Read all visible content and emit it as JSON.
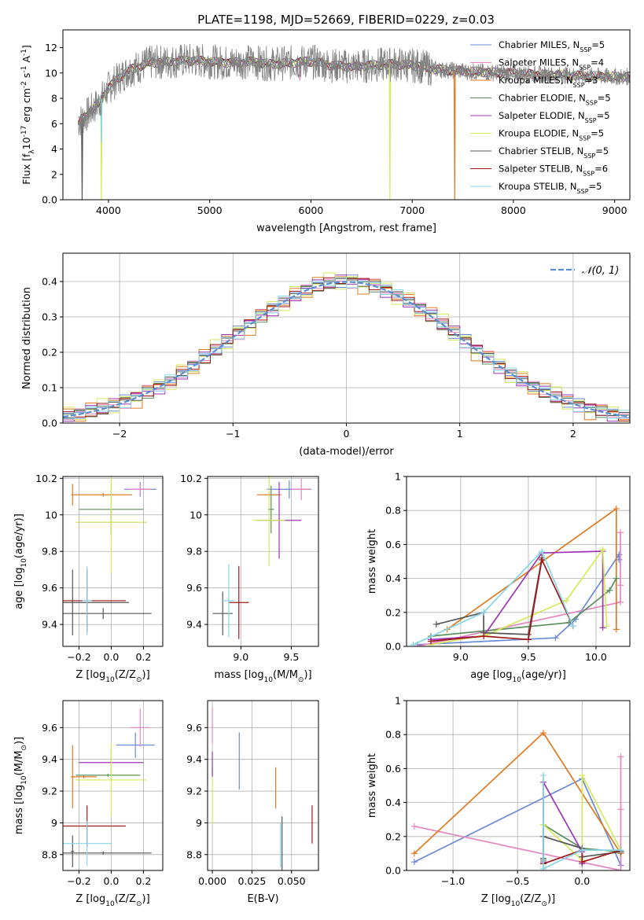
{
  "figure": {
    "title": "PLATE=1198, MJD=52669, FIBERID=0229, z=0.03"
  },
  "colors": {
    "blue": "#6a8ad6",
    "pink": "#e486c0",
    "orange": "#e07b22",
    "green": "#5c8f60",
    "purple": "#9b35b5",
    "yellow": "#d6e85c",
    "gray": "#555555",
    "red": "#a01818",
    "cyan": "#86d6e6",
    "normal": "#5b8dd6",
    "grid": "#b0b0b0",
    "spectrum": "#808080"
  },
  "models": [
    {
      "name": "Chabrier MILES",
      "nssp": "5",
      "color": "#6a8ad6"
    },
    {
      "name": "Salpeter MILES",
      "nssp": "4",
      "color": "#e486c0"
    },
    {
      "name": "Kroupa MILES",
      "nssp": "3",
      "color": "#e07b22"
    },
    {
      "name": "Chabrier ELODIE",
      "nssp": "5",
      "color": "#5c8f60"
    },
    {
      "name": "Salpeter ELODIE",
      "nssp": "5",
      "color": "#9b35b5"
    },
    {
      "name": "Kroupa ELODIE",
      "nssp": "5",
      "color": "#d6e85c"
    },
    {
      "name": "Chabrier STELIB",
      "nssp": "5",
      "color": "#555555"
    },
    {
      "name": "Salpeter STELIB",
      "nssp": "6",
      "color": "#a01818"
    },
    {
      "name": "Kroupa STELIB",
      "nssp": "5",
      "color": "#86d6e6"
    }
  ],
  "chart_data": [
    {
      "id": "spectrum",
      "type": "line",
      "title": "PLATE=1198, MJD=52669, FIBERID=0229, z=0.03",
      "xlabel": "wavelength [Angstrom, rest frame]",
      "ylabel_parts": [
        "Flux [f",
        "λ",
        "10",
        "-17",
        " erg cm",
        "-2",
        " s",
        "-1",
        " A",
        "-1",
        "]"
      ],
      "xlim": [
        3550,
        9150
      ],
      "ylim": [
        0,
        13.4
      ],
      "xticks": [
        4000,
        5000,
        6000,
        7000,
        8000,
        9000
      ],
      "yticks": [
        0,
        2,
        4,
        6,
        8,
        10,
        12
      ],
      "continuum": {
        "x": [
          3700,
          3800,
          3900,
          4000,
          4100,
          4200,
          4400,
          4600,
          4800,
          5000,
          5200,
          5400,
          5600,
          5800,
          6000,
          6200,
          6400,
          6600,
          6800,
          7000,
          7100,
          7200,
          7400,
          7600,
          7900,
          8200,
          8600,
          9000,
          9150
        ],
        "y": [
          6.1,
          6.8,
          7.6,
          8.8,
          9.6,
          10.2,
          10.8,
          10.9,
          11.0,
          10.9,
          10.8,
          10.9,
          10.7,
          10.8,
          10.9,
          10.6,
          10.5,
          10.6,
          10.7,
          10.6,
          10.5,
          10.3,
          10.2,
          10.1,
          10.0,
          9.9,
          9.8,
          9.7,
          9.7
        ]
      },
      "observed_range": [
        3700,
        9150
      ],
      "dips": [
        {
          "x": 3740,
          "y": 0.0,
          "model": 6
        },
        {
          "x": 3930,
          "y": 0.0,
          "model": 5
        },
        {
          "x": 6780,
          "y": 0.0,
          "model": 5
        },
        {
          "x": 7420,
          "y": 0.0,
          "model": 2
        },
        {
          "x": 5890,
          "y": 9.4,
          "model": 1
        },
        {
          "x": 3930,
          "y": 4.5,
          "model": 8
        }
      ]
    },
    {
      "id": "residuals",
      "type": "step",
      "xlabel": "(data-model)/error",
      "ylabel": "Normed distribution",
      "xlim": [
        -2.5,
        2.5
      ],
      "ylim": [
        0,
        0.48
      ],
      "xticks": [
        -2,
        -1,
        0,
        1,
        2
      ],
      "xtick_labels": [
        "−2",
        "−1",
        "0",
        "1",
        "2"
      ],
      "yticks": [
        0.0,
        0.1,
        0.2,
        0.3,
        0.4
      ],
      "legend": "𝒩(0, 1)",
      "bins": {
        "start": -2.5,
        "width": 0.1,
        "count": 50
      },
      "series": [
        {
          "model": 0,
          "noise": [
            0.008,
            -0.012,
            0.01,
            0.004,
            -0.015,
            0.02,
            0.006,
            -0.01,
            0.014,
            -0.005
          ]
        },
        {
          "model": 1,
          "noise": [
            -0.01,
            0.015,
            -0.006,
            0.012,
            0.003,
            -0.018,
            0.01,
            0.02,
            -0.008,
            0.005
          ]
        },
        {
          "model": 2,
          "noise": [
            0.02,
            -0.02,
            0.025,
            -0.012,
            0.015,
            0.01,
            -0.03,
            0.018,
            0.006,
            -0.01
          ]
        },
        {
          "model": 3,
          "noise": [
            0.005,
            0.01,
            -0.014,
            0.008,
            -0.006,
            0.012,
            0.004,
            -0.016,
            0.01,
            0.002
          ]
        },
        {
          "model": 4,
          "noise": [
            -0.015,
            0.006,
            0.018,
            -0.01,
            0.02,
            -0.006,
            0.012,
            0.004,
            -0.02,
            0.01
          ]
        },
        {
          "model": 5,
          "noise": [
            0.025,
            -0.015,
            0.006,
            0.03,
            -0.02,
            0.015,
            -0.01,
            0.008,
            0.02,
            -0.025
          ]
        },
        {
          "model": 6,
          "noise": [
            -0.005,
            0.012,
            0.008,
            -0.014,
            0.01,
            0.006,
            -0.008,
            0.014,
            -0.004,
            0.01
          ]
        },
        {
          "model": 7,
          "noise": [
            0.012,
            -0.008,
            -0.012,
            0.016,
            -0.004,
            0.01,
            0.014,
            -0.01,
            0.008,
            -0.014
          ]
        },
        {
          "model": 8,
          "noise": [
            -0.008,
            0.004,
            0.014,
            -0.006,
            0.012,
            -0.016,
            0.006,
            0.01,
            -0.012,
            0.016
          ]
        }
      ]
    },
    {
      "id": "age_vs_z",
      "type": "errorbar",
      "xlabel": [
        "Z [log",
        "10",
        "(Z/Z",
        "⊙",
        ")]"
      ],
      "ylabel": [
        "age  [log",
        "10",
        "(age/yr)]"
      ],
      "xlim": [
        -0.3,
        0.32
      ],
      "ylim": [
        9.28,
        10.21
      ],
      "xticks": [
        -0.2,
        0.0,
        0.2
      ],
      "xtick_labels": [
        "−0.2",
        "0.0",
        "0.2"
      ],
      "yticks": [
        9.4,
        9.6,
        9.8,
        10.0,
        10.2
      ],
      "points": [
        {
          "model": 0,
          "x": 0.18,
          "y": 10.14,
          "xerr": 0.1,
          "yerr": 0.04
        },
        {
          "model": 1,
          "x": 0.18,
          "y": 10.14,
          "xerr": 0.07,
          "yerr": 0.03
        },
        {
          "model": 2,
          "x": -0.24,
          "y": 10.11,
          "xerr": 0.01,
          "yerr": 0.06
        },
        {
          "model": 2,
          "x": -0.05,
          "y": 10.11,
          "xerr": 0.18,
          "yerr": 0.01
        },
        {
          "model": 3,
          "x": 0.0,
          "y": 10.03,
          "xerr": 0.2,
          "yerr": 0.14
        },
        {
          "model": 4,
          "x": 0.0,
          "y": 9.96,
          "xerr": 0.22,
          "yerr": 0.07
        },
        {
          "model": 5,
          "x": 0.0,
          "y": 9.96,
          "xerr": 0.22,
          "yerr": 0.28
        },
        {
          "model": 6,
          "x": -0.24,
          "y": 9.52,
          "xerr": 0.35,
          "yerr": 0.18
        },
        {
          "model": 6,
          "x": -0.05,
          "y": 9.46,
          "xerr": 0.3,
          "yerr": 0.03
        },
        {
          "model": 7,
          "x": -0.15,
          "y": 9.53,
          "xerr": 0.24,
          "yerr": 0.17
        },
        {
          "model": 8,
          "x": -0.15,
          "y": 9.53,
          "xerr": 0.03,
          "yerr": 0.19
        }
      ]
    },
    {
      "id": "age_vs_mass",
      "type": "errorbar",
      "xlabel": [
        "mass [log",
        "10",
        "(M/M",
        "⊙",
        ")]"
      ],
      "ylabel": [],
      "xlim": [
        8.67,
        9.77
      ],
      "ylim": [
        9.28,
        10.21
      ],
      "xticks": [
        9.0,
        9.5
      ],
      "xtick_labels": [
        "9.0",
        "9.5"
      ],
      "yticks": [
        9.4,
        9.6,
        9.8,
        10.0,
        10.2
      ],
      "points": [
        {
          "model": 0,
          "x": 9.48,
          "y": 10.14,
          "xerr": 0.22,
          "yerr": 0.05
        },
        {
          "model": 1,
          "x": 9.6,
          "y": 10.14,
          "xerr": 0.1,
          "yerr": 0.06
        },
        {
          "model": 2,
          "x": 9.28,
          "y": 10.11,
          "xerr": 0.12,
          "yerr": 0.02
        },
        {
          "model": 3,
          "x": 9.3,
          "y": 10.03,
          "xerr": 0.03,
          "yerr": 0.13
        },
        {
          "model": 4,
          "x": 9.38,
          "y": 9.97,
          "xerr": 0.22,
          "yerr": 0.21
        },
        {
          "model": 5,
          "x": 9.28,
          "y": 9.97,
          "xerr": 0.16,
          "yerr": 0.25
        },
        {
          "model": 6,
          "x": 8.82,
          "y": 9.46,
          "xerr": 0.1,
          "yerr": 0.12
        },
        {
          "model": 7,
          "x": 8.98,
          "y": 9.52,
          "xerr": 0.1,
          "yerr": 0.2
        },
        {
          "model": 8,
          "x": 8.88,
          "y": 9.53,
          "xerr": 0.06,
          "yerr": 0.2
        }
      ]
    },
    {
      "id": "weight_vs_age",
      "type": "line",
      "xlabel": [
        "age  [log",
        "10",
        "(age/yr)]"
      ],
      "ylabel": [
        "mass weight"
      ],
      "xlim": [
        8.6,
        10.25
      ],
      "ylim": [
        0,
        1.0
      ],
      "xticks": [
        9.0,
        9.5,
        10.0
      ],
      "xtick_labels": [
        "9.0",
        "9.5",
        "10.0"
      ],
      "yticks": [
        0.0,
        0.2,
        0.4,
        0.6,
        0.8,
        1.0
      ],
      "series": [
        {
          "model": 0,
          "x": [
            8.68,
            9.7,
            9.85,
            10.17,
            10.17
          ],
          "y": [
            0.01,
            0.05,
            0.16,
            0.54,
            0.51
          ]
        },
        {
          "model": 1,
          "x": [
            8.68,
            10.18,
            10.18,
            10.18
          ],
          "y": [
            0.0,
            0.26,
            0.36,
            0.67
          ]
        },
        {
          "model": 2,
          "x": [
            8.9,
            10.15,
            10.15
          ],
          "y": [
            0.1,
            0.81,
            0.1
          ]
        },
        {
          "model": 3,
          "x": [
            8.78,
            9.8,
            10.1,
            10.15
          ],
          "y": [
            0.06,
            0.14,
            0.33,
            0.4
          ]
        },
        {
          "model": 4,
          "x": [
            8.78,
            9.17,
            9.6,
            10.05,
            10.05
          ],
          "y": [
            0.04,
            0.06,
            0.55,
            0.56,
            0.11
          ]
        },
        {
          "model": 5,
          "x": [
            8.78,
            9.2,
            9.78,
            10.05,
            10.08
          ],
          "y": [
            0.01,
            0.07,
            0.27,
            0.57,
            0.12
          ]
        },
        {
          "model": 6,
          "x": [
            8.82,
            9.17,
            9.17,
            9.5,
            9.6
          ],
          "y": [
            0.13,
            0.2,
            0.08,
            0.07,
            0.52
          ]
        },
        {
          "model": 7,
          "x": [
            8.78,
            9.17,
            9.5,
            9.6,
            9.83
          ],
          "y": [
            0.03,
            0.06,
            0.04,
            0.51,
            0.12
          ]
        },
        {
          "model": 8,
          "x": [
            8.65,
            9.17,
            9.6,
            9.83
          ],
          "y": [
            0.01,
            0.2,
            0.56,
            0.12
          ]
        }
      ]
    },
    {
      "id": "mass_vs_z",
      "type": "errorbar",
      "xlabel": [
        "Z [log",
        "10",
        "(Z/Z",
        "⊙",
        ")]"
      ],
      "ylabel": [
        "mass [log",
        "10",
        "(M/M",
        "⊙",
        ")]"
      ],
      "xlim": [
        -0.3,
        0.32
      ],
      "ylim": [
        8.7,
        9.77
      ],
      "xticks": [
        -0.2,
        0.0,
        0.2
      ],
      "xtick_labels": [
        "−0.2",
        "0.0",
        "0.2"
      ],
      "yticks": [
        8.8,
        9.0,
        9.2,
        9.4,
        9.6
      ],
      "points": [
        {
          "model": 0,
          "x": 0.15,
          "y": 9.49,
          "xerr": 0.12,
          "yerr": 0.08
        },
        {
          "model": 1,
          "x": 0.18,
          "y": 9.6,
          "xerr": 0.06,
          "yerr": 0.12
        },
        {
          "model": 2,
          "x": -0.24,
          "y": 9.29,
          "xerr": 0.01,
          "yerr": 0.2
        },
        {
          "model": 2,
          "x": -0.17,
          "y": 9.29,
          "xerr": 0.08,
          "yerr": 0.01
        },
        {
          "model": 3,
          "x": -0.02,
          "y": 9.3,
          "xerr": 0.2,
          "yerr": 0.01
        },
        {
          "model": 4,
          "x": 0.0,
          "y": 9.38,
          "xerr": 0.2,
          "yerr": 0.08
        },
        {
          "model": 5,
          "x": 0.0,
          "y": 9.27,
          "xerr": 0.22,
          "yerr": 0.23
        },
        {
          "model": 6,
          "x": -0.24,
          "y": 8.82,
          "xerr": 0.01,
          "yerr": 0.1
        },
        {
          "model": 6,
          "x": -0.05,
          "y": 8.81,
          "xerr": 0.3,
          "yerr": 0.01
        },
        {
          "model": 7,
          "x": -0.15,
          "y": 8.98,
          "xerr": 0.24,
          "yerr": 0.13
        },
        {
          "model": 8,
          "x": -0.15,
          "y": 8.87,
          "xerr": 0.15,
          "yerr": 0.14
        }
      ]
    },
    {
      "id": "mass_vs_ebv",
      "type": "errorbar",
      "xlabel": [
        "E(B-V)"
      ],
      "ylabel": [],
      "xlim": [
        -0.003,
        0.067
      ],
      "ylim": [
        8.7,
        9.77
      ],
      "xticks": [
        0.0,
        0.025,
        0.05
      ],
      "xtick_labels": [
        "0.000",
        "0.025",
        "0.050"
      ],
      "yticks": [
        8.8,
        9.0,
        9.2,
        9.4,
        9.6
      ],
      "points": [
        {
          "model": 0,
          "x": 0.017,
          "y": 9.39,
          "xerr": 0.0,
          "yerr": 0.18
        },
        {
          "model": 1,
          "x": 0.0,
          "y": 9.61,
          "xerr": 0.0,
          "yerr": 0.11
        },
        {
          "model": 2,
          "x": 0.04,
          "y": 9.22,
          "xerr": 0.0,
          "yerr": 0.13
        },
        {
          "model": 3,
          "x": 0.0,
          "y": 9.32,
          "xerr": 0.0,
          "yerr": 0.02
        },
        {
          "model": 4,
          "x": 0.0,
          "y": 9.37,
          "xerr": 0.0,
          "yerr": 0.08
        },
        {
          "model": 5,
          "x": 0.0,
          "y": 9.14,
          "xerr": 0.0,
          "yerr": 0.15
        },
        {
          "model": 6,
          "x": 0.044,
          "y": 8.86,
          "xerr": 0.0,
          "yerr": 0.18
        },
        {
          "model": 7,
          "x": 0.063,
          "y": 8.99,
          "xerr": 0.0,
          "yerr": 0.12
        },
        {
          "model": 8,
          "x": 0.043,
          "y": 8.86,
          "xerr": 0.0,
          "yerr": 0.14
        }
      ]
    },
    {
      "id": "weight_vs_z",
      "type": "line",
      "xlabel": [
        "Z [log",
        "10",
        "(Z/Z",
        "⊙",
        ")]"
      ],
      "ylabel": [
        "mass weight"
      ],
      "xlim": [
        -1.36,
        0.37
      ],
      "ylim": [
        0,
        1.0
      ],
      "xticks": [
        -1.0,
        -0.5,
        0.0
      ],
      "xtick_labels": [
        "−1.0",
        "−0.5",
        "0.0"
      ],
      "yticks": [
        0.0,
        0.2,
        0.4,
        0.6,
        0.8,
        1.0
      ],
      "series": [
        {
          "model": 0,
          "x": [
            -1.3,
            0.0,
            0.3,
            0.3
          ],
          "y": [
            0.05,
            0.54,
            0.03,
            0.12
          ]
        },
        {
          "model": 1,
          "x": [
            -1.3,
            0.3,
            0.3,
            0.3
          ],
          "y": [
            0.26,
            0.0,
            0.36,
            0.67
          ]
        },
        {
          "model": 2,
          "x": [
            -1.3,
            -0.3,
            0.3
          ],
          "y": [
            0.1,
            0.81,
            0.1
          ]
        },
        {
          "model": 3,
          "x": [
            -0.3,
            -0.3,
            0.0,
            0.3
          ],
          "y": [
            0.06,
            0.27,
            0.13,
            0.11
          ]
        },
        {
          "model": 4,
          "x": [
            -0.3,
            -0.3,
            0.0,
            0.0
          ],
          "y": [
            0.05,
            0.52,
            0.11,
            0.04
          ]
        },
        {
          "model": 5,
          "x": [
            -0.3,
            -0.3,
            0.0,
            0.0,
            0.3
          ],
          "y": [
            0.27,
            0.27,
            0.06,
            0.56,
            0.12
          ]
        },
        {
          "model": 6,
          "x": [
            -0.3,
            -0.3,
            0.0,
            0.0,
            0.3
          ],
          "y": [
            0.07,
            0.2,
            0.13,
            0.08,
            0.11
          ]
        },
        {
          "model": 7,
          "x": [
            -0.3,
            0.0,
            0.0,
            0.3
          ],
          "y": [
            0.04,
            0.12,
            0.05,
            0.12
          ]
        },
        {
          "model": 8,
          "x": [
            -0.3,
            -0.3,
            0.0,
            0.3
          ],
          "y": [
            0.56,
            0.01,
            0.12,
            0.12
          ]
        }
      ]
    }
  ]
}
